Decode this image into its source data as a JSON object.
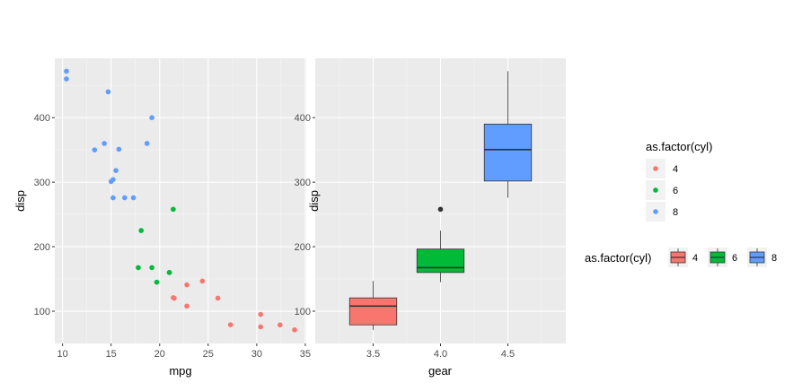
{
  "colors": {
    "4": "#F8766D",
    "6": "#00BA38",
    "8": "#619CFF"
  },
  "chart_data": [
    {
      "type": "scatter",
      "xlabel": "mpg",
      "ylabel": "disp",
      "xlim": [
        9.2,
        35.1
      ],
      "ylim": [
        50,
        492
      ],
      "xticks": [
        10,
        15,
        20,
        25,
        30,
        35
      ],
      "yticks": [
        100,
        200,
        300,
        400
      ],
      "grid": true,
      "points": [
        {
          "x": 21.0,
          "y": 160,
          "cyl": "6"
        },
        {
          "x": 21.0,
          "y": 160,
          "cyl": "6"
        },
        {
          "x": 22.8,
          "y": 108,
          "cyl": "4"
        },
        {
          "x": 21.4,
          "y": 258,
          "cyl": "6"
        },
        {
          "x": 18.7,
          "y": 360,
          "cyl": "8"
        },
        {
          "x": 18.1,
          "y": 225,
          "cyl": "6"
        },
        {
          "x": 14.3,
          "y": 360,
          "cyl": "8"
        },
        {
          "x": 24.4,
          "y": 146.7,
          "cyl": "4"
        },
        {
          "x": 22.8,
          "y": 140.8,
          "cyl": "4"
        },
        {
          "x": 19.2,
          "y": 167.6,
          "cyl": "6"
        },
        {
          "x": 17.8,
          "y": 167.6,
          "cyl": "6"
        },
        {
          "x": 16.4,
          "y": 275.8,
          "cyl": "8"
        },
        {
          "x": 17.3,
          "y": 275.8,
          "cyl": "8"
        },
        {
          "x": 15.2,
          "y": 275.8,
          "cyl": "8"
        },
        {
          "x": 10.4,
          "y": 472,
          "cyl": "8"
        },
        {
          "x": 10.4,
          "y": 460,
          "cyl": "8"
        },
        {
          "x": 14.7,
          "y": 440,
          "cyl": "8"
        },
        {
          "x": 32.4,
          "y": 78.7,
          "cyl": "4"
        },
        {
          "x": 30.4,
          "y": 75.7,
          "cyl": "4"
        },
        {
          "x": 33.9,
          "y": 71.1,
          "cyl": "4"
        },
        {
          "x": 21.5,
          "y": 120.1,
          "cyl": "4"
        },
        {
          "x": 15.5,
          "y": 318,
          "cyl": "8"
        },
        {
          "x": 15.2,
          "y": 304,
          "cyl": "8"
        },
        {
          "x": 13.3,
          "y": 350,
          "cyl": "8"
        },
        {
          "x": 19.2,
          "y": 400,
          "cyl": "8"
        },
        {
          "x": 27.3,
          "y": 79,
          "cyl": "4"
        },
        {
          "x": 26.0,
          "y": 120.3,
          "cyl": "4"
        },
        {
          "x": 30.4,
          "y": 95.1,
          "cyl": "4"
        },
        {
          "x": 15.8,
          "y": 351,
          "cyl": "8"
        },
        {
          "x": 19.7,
          "y": 145,
          "cyl": "6"
        },
        {
          "x": 15.0,
          "y": 301,
          "cyl": "8"
        },
        {
          "x": 21.4,
          "y": 121,
          "cyl": "4"
        }
      ],
      "legend": {
        "title": "as.factor(cyl)",
        "entries": [
          "4",
          "6",
          "8"
        ],
        "placement": "right"
      }
    },
    {
      "type": "box",
      "xlabel": "gear",
      "ylabel": "disp",
      "xlim": [
        3.07,
        4.93
      ],
      "ylim": [
        50,
        492
      ],
      "xticks": [
        3.5,
        4.0,
        4.5
      ],
      "xtick_labels": [
        "3.5",
        "4.0",
        "4.5"
      ],
      "yticks": [
        100,
        200,
        300,
        400
      ],
      "grid": true,
      "boxes": [
        {
          "cyl": "4",
          "x_center": 3.5,
          "width": 0.35,
          "whisker_low": 71.1,
          "q1": 78.85,
          "median": 108,
          "q3": 120.65,
          "whisker_high": 146.7,
          "outliers": []
        },
        {
          "cyl": "6",
          "x_center": 4.0,
          "width": 0.35,
          "whisker_low": 145,
          "q1": 160,
          "median": 167.6,
          "q3": 196.3,
          "whisker_high": 225,
          "outliers": [
            258
          ]
        },
        {
          "cyl": "8",
          "x_center": 4.5,
          "width": 0.35,
          "whisker_low": 275.8,
          "q1": 301.75,
          "median": 350.5,
          "q3": 390,
          "whisker_high": 472,
          "outliers": []
        }
      ],
      "legend": {
        "title": "as.factor(cyl)",
        "entries": [
          "4",
          "6",
          "8"
        ],
        "placement": "right"
      }
    }
  ]
}
